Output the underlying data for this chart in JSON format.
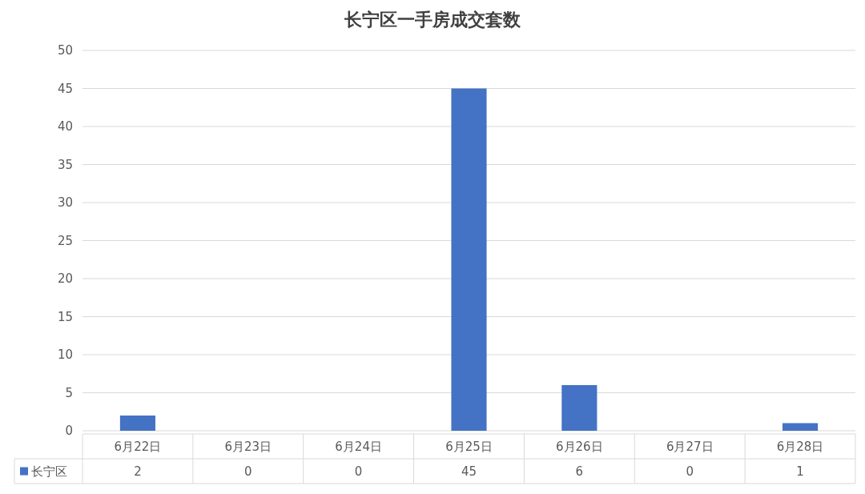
{
  "chart_data": {
    "type": "bar",
    "title": "长宁区一手房成交套数",
    "categories": [
      "6月22日",
      "6月23日",
      "6月24日",
      "6月25日",
      "6月26日",
      "6月27日",
      "6月28日"
    ],
    "series": [
      {
        "name": "长宁区",
        "color": "#4472c4",
        "values": [
          2,
          0,
          0,
          45,
          6,
          0,
          1
        ]
      }
    ],
    "ylim": [
      0,
      50
    ],
    "yticks": [
      0,
      5,
      10,
      15,
      20,
      25,
      30,
      35,
      40,
      45,
      50
    ],
    "grid": "y",
    "legend": "bottom",
    "data_labels": true
  }
}
